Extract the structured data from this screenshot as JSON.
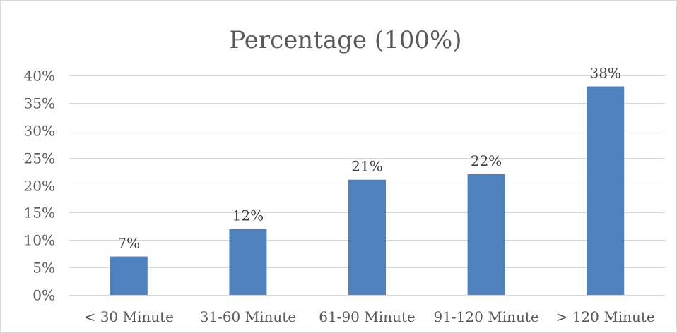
{
  "chart_data": {
    "type": "bar",
    "title": "Percentage (100%)",
    "categories": [
      "< 30 Minute",
      "31-60 Minute",
      "61-90 Minute",
      "91-120 Minute",
      "> 120 Minute"
    ],
    "values": [
      7,
      12,
      21,
      22,
      38
    ],
    "data_labels": [
      "7%",
      "12%",
      "21%",
      "22%",
      "38%"
    ],
    "xlabel": "",
    "ylabel": "",
    "ylim": [
      0,
      40
    ],
    "yticks": [
      0,
      5,
      10,
      15,
      20,
      25,
      30,
      35,
      40
    ],
    "ytick_labels": [
      "0%",
      "5%",
      "10%",
      "15%",
      "20%",
      "25%",
      "30%",
      "35%",
      "40%"
    ],
    "grid": true,
    "legend": "none",
    "bar_color": "#4f81bd",
    "grid_color": "#d9d9d9",
    "axis_color": "#d9d9d9",
    "text_color": "#595959"
  }
}
